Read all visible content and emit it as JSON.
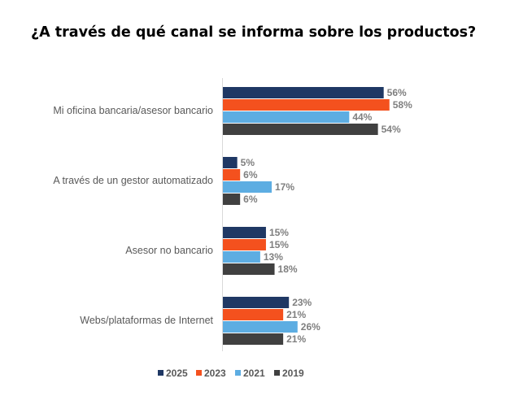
{
  "chart_data": {
    "type": "bar",
    "orientation": "horizontal",
    "title": "¿A través de qué canal se informa sobre los productos?",
    "categories": [
      "Mi oficina bancaria/asesor bancario",
      "A través de un gestor automatizado",
      "Asesor no bancario",
      "Webs/plataformas de Internet"
    ],
    "series": [
      {
        "name": "2025",
        "color": "#1f3864",
        "values": [
          56,
          5,
          15,
          23
        ],
        "labels": [
          "56%",
          "5%",
          "15%",
          "23%"
        ]
      },
      {
        "name": "2023",
        "color": "#f4511e",
        "values": [
          58,
          6,
          15,
          21
        ],
        "labels": [
          "58%",
          "6%",
          "15%",
          "21%"
        ]
      },
      {
        "name": "2021",
        "color": "#5dade2",
        "values": [
          44,
          17,
          13,
          26
        ],
        "labels": [
          "44%",
          "17%",
          "13%",
          "26%"
        ]
      },
      {
        "name": "2019",
        "color": "#404040",
        "values": [
          54,
          6,
          18,
          21
        ],
        "labels": [
          "54%",
          "6%",
          "18%",
          "21%"
        ]
      }
    ],
    "xlim": [
      0,
      100
    ],
    "grid": false,
    "legend_position": "bottom"
  }
}
